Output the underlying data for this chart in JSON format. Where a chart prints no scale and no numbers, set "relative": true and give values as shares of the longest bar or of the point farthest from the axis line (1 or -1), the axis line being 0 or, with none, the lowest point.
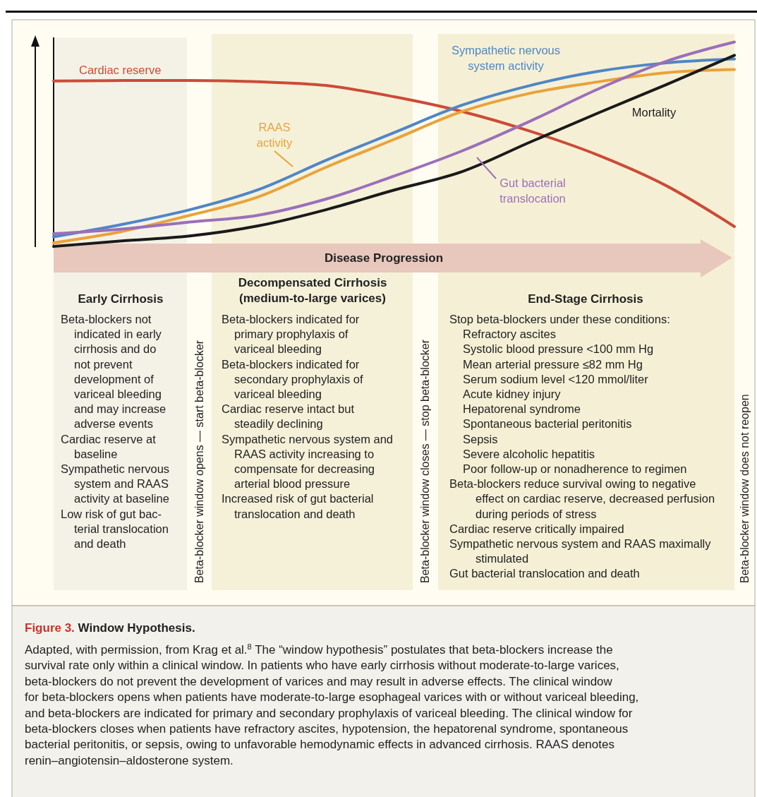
{
  "chart_data": {
    "type": "line",
    "relative": true,
    "title": "Window Hypothesis.",
    "xlabel": "Disease Progression",
    "categories": [
      null,
      null,
      null,
      null,
      null,
      null,
      null,
      null,
      null,
      null,
      null
    ],
    "series": [
      {
        "name": "Cardiac reserve",
        "color": "#cc4b37",
        "values": [
          0.81,
          0.812,
          0.812,
          0.806,
          0.788,
          0.733,
          0.661,
          0.565,
          0.448,
          0.299,
          0.1
        ]
      },
      {
        "name": "Sympathetic nervous system activity",
        "color": "#4f86c6",
        "values": [
          0.05,
          0.11,
          0.182,
          0.279,
          0.423,
          0.558,
          0.692,
          0.788,
          0.857,
          0.898,
          0.917
        ]
      },
      {
        "name": "RAAS activity",
        "color": "#e9a23b",
        "values": [
          0.021,
          0.076,
          0.155,
          0.244,
          0.389,
          0.525,
          0.661,
          0.75,
          0.806,
          0.85,
          0.866
        ]
      },
      {
        "name": "Gut bacterial translocation",
        "color": "#9b6fba",
        "values": [
          0.065,
          0.088,
          0.122,
          0.155,
          0.234,
          0.346,
          0.469,
          0.614,
          0.771,
          0.906,
          1.0
        ]
      },
      {
        "name": "Mortality",
        "color": "#1a1a1a",
        "values": [
          0.003,
          0.03,
          0.054,
          0.103,
          0.182,
          0.278,
          0.368,
          0.512,
          0.654,
          0.792,
          0.935
        ]
      }
    ],
    "annotations": [
      "Figure 3.",
      "Early Cirrhosis",
      "Beta-blockers not",
      "indicated in early",
      "cirrhosis and do",
      "not prevent",
      "development of",
      "variceal bleeding",
      "and may increase",
      "adverse events",
      "Cardiac reserve at",
      "baseline",
      "Sympathetic nervous",
      "system and RAAS",
      "activity at baseline",
      "Low risk of gut bac-",
      "terial translocation",
      "and death",
      "Decompensated Cirrhosis",
      "(medium-to-large varices)",
      "Beta-blockers indicated for",
      "primary prophylaxis of",
      "variceal bleeding",
      "Beta-blockers indicated for",
      "secondary prophylaxis of",
      "variceal bleeding",
      "Cardiac reserve intact but",
      "steadily declining",
      "Sympathetic nervous system and",
      "RAAS activity increasing to",
      "compensate for decreasing",
      "arterial blood pressure",
      "Increased risk of gut bacterial",
      "translocation and death",
      "End-Stage Cirrhosis",
      "Stop beta-blockers under these conditions:",
      "Refractory ascites",
      "Systolic blood pressure <100 mm Hg",
      "Mean arterial pressure ≤82 mm Hg",
      "Serum sodium level <120 mmol/liter",
      "Acute kidney injury",
      "Hepatorenal syndrome",
      "Spontaneous bacterial peritonitis",
      "Sepsis",
      "Severe alcoholic hepatitis",
      "Poor follow-up or nonadherence to regimen",
      "Beta-blockers reduce survival owing to negative",
      "effect on cardiac reserve, decreased perfusion",
      "during periods of stress",
      "Cardiac reserve critically impaired",
      "Sympathetic nervous system and RAAS maximally",
      "stimulated",
      "Gut bacterial translocation and death",
      "Beta-blocker window opens — start beta-blocker",
      "Beta-blocker window closes — stop beta-blocker",
      "Beta-blocker window does not reopen",
      "Adapted, with permission, from Krag et al.$^{8}$ The “window hypothesis” postulates that beta-blockers increase the",
      "survival rate only within a clinical window. In patients who have early cirrhosis without moderate-to-large varices,",
      "beta-blockers do not prevent the development of varices and may result in adverse effects. The clinical window",
      "for beta-blockers opens when patients have moderate-to-large esophageal varices with or without variceal bleeding,",
      "and beta-blockers are indicated for primary and secondary prophylaxis of variceal bleeding. The clinical window for",
      "beta-blockers closes when patients have refractory ascites, hypotension, the hepatorenal syndrome, spontaneous",
      "bacterial peritonitis, or sepsis, owing to unfavorable hemodynamic effects in advanced cirrhosis. RAAS denotes",
      "renin–angiotensin–aldosterone system."
    ]
  }
}
